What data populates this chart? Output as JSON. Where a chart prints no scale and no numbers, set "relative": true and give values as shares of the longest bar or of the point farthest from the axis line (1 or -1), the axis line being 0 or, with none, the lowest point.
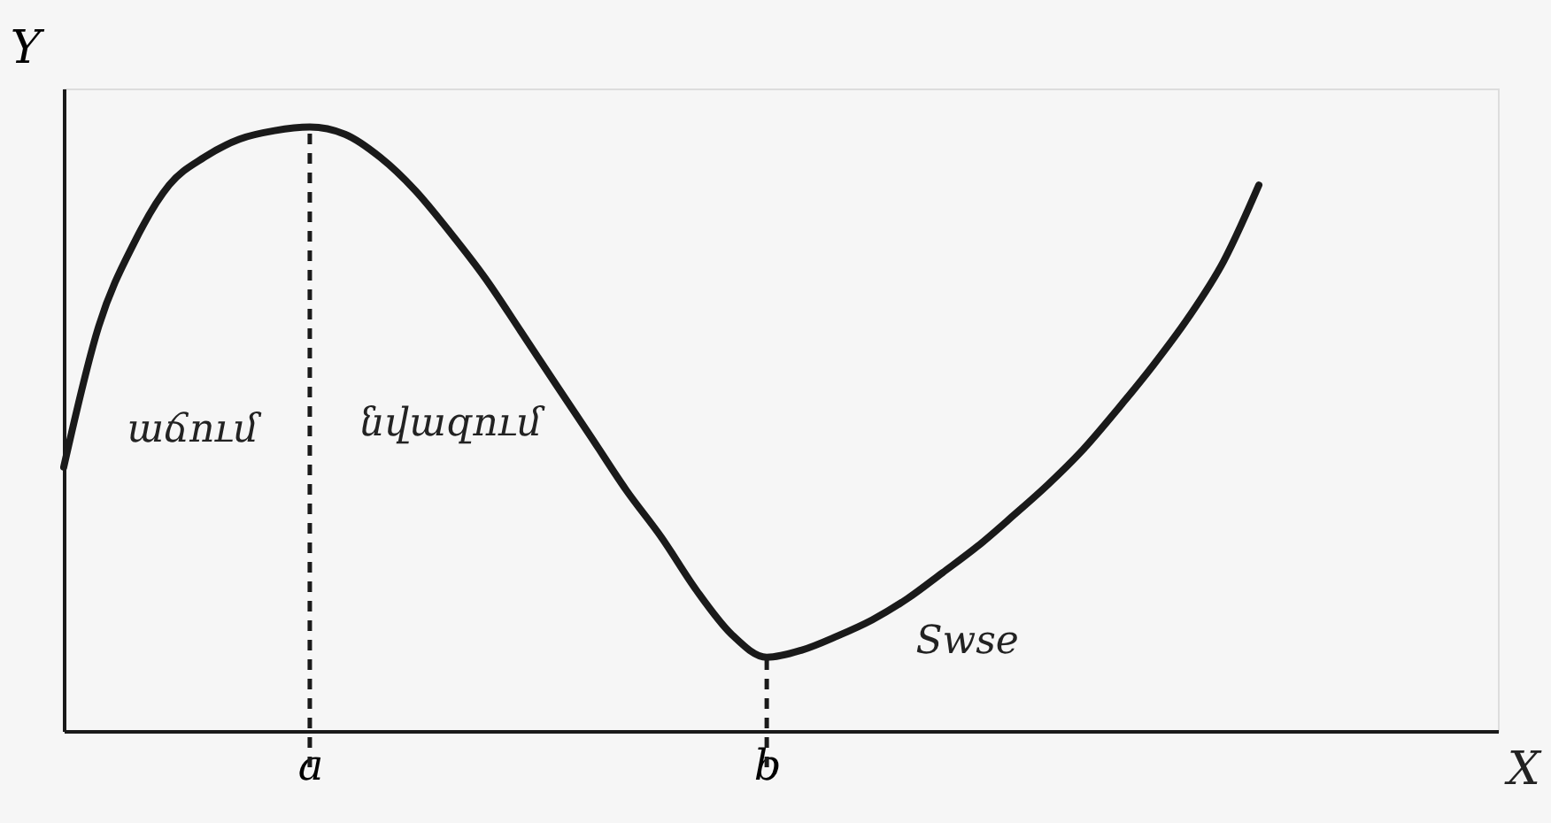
{
  "chart_data": {
    "type": "line",
    "relative": true,
    "ylabel": "Y",
    "categories": [
      null,
      null,
      null,
      null,
      null,
      null,
      null,
      "a",
      null,
      null,
      null,
      null,
      null,
      null,
      null,
      null,
      null,
      null,
      null,
      null,
      "b",
      null,
      null,
      null,
      null,
      null,
      null,
      null,
      null,
      null,
      null,
      null,
      null,
      null,
      null
    ],
    "series": [
      {
        "color": "#1a1a1a",
        "values": [
          0.437,
          0.671,
          0.808,
          0.904,
          0.95,
          0.98,
          0.994,
          1,
          0.988,
          0.95,
          0.895,
          0.825,
          0.749,
          0.662,
          0.574,
          0.487,
          0.399,
          0.321,
          0.233,
          0.16,
          0.122,
          0.134,
          0.157,
          0.184,
          0.219,
          0.262,
          0.306,
          0.356,
          0.408,
          0.466,
          0.534,
          0.606,
          0.685,
          0.778,
          0.904
        ]
      }
    ],
    "ref_lines": [
      {
        "axis": "x",
        "value": "a",
        "line_style": "dashed",
        "color": "#1a1a1a"
      },
      {
        "axis": "x",
        "value": "b",
        "line_style": "dashed",
        "color": "#1a1a1a"
      }
    ],
    "annotations": [
      "աճում",
      "նվազում",
      "Swse",
      "X"
    ],
    "grid": false,
    "marker": "none",
    "line_style": "solid"
  }
}
